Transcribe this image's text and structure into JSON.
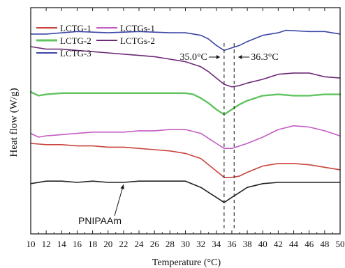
{
  "chart_data": {
    "type": "line",
    "xlabel": "Temperature (°C)",
    "ylabel": "Heat flow (W/g)",
    "xlim": [
      10,
      50
    ],
    "x_ticks": [
      10,
      12,
      14,
      16,
      18,
      20,
      22,
      24,
      26,
      28,
      30,
      32,
      34,
      36,
      38,
      40,
      42,
      44,
      46,
      48,
      50
    ],
    "y_ticks_shown": false,
    "grid": false,
    "legend_position": "top-left",
    "reference_lines": [
      {
        "x": 35.0,
        "label": "35.0°C",
        "style": "dashed"
      },
      {
        "x": 36.3,
        "label": "36.3°C",
        "style": "dashed"
      }
    ],
    "annotation": {
      "text": "PNIPAAm",
      "points_to_x": 22,
      "series": "PNIPAAm"
    },
    "series": [
      {
        "name": "LCTG-3",
        "color": "#3b45a8",
        "x": [
          10,
          12,
          16,
          20,
          24,
          28,
          30,
          32,
          33,
          34,
          35,
          36,
          37,
          38,
          40,
          42,
          43,
          46,
          48,
          50
        ],
        "y": [
          15.9,
          15.9,
          16.1,
          16.0,
          16.1,
          16.0,
          16.0,
          15.8,
          15.5,
          15.0,
          14.6,
          14.8,
          15.0,
          15.3,
          15.8,
          16.0,
          16.2,
          16.1,
          16.1,
          15.9
        ]
      },
      {
        "name": "LCTGs-2",
        "color": "#6d2a78",
        "x": [
          10,
          12,
          14,
          16,
          18,
          20,
          22,
          24,
          26,
          28,
          30,
          32,
          33,
          34,
          35,
          36,
          37,
          38,
          40,
          42,
          44,
          46,
          48,
          50
        ],
        "y": [
          14.9,
          14.7,
          14.7,
          14.6,
          14.5,
          14.4,
          14.3,
          14.2,
          14.1,
          13.9,
          13.7,
          13.3,
          12.9,
          12.4,
          11.9,
          11.7,
          11.8,
          12.0,
          12.3,
          12.7,
          12.8,
          12.8,
          12.5,
          12.4
        ]
      },
      {
        "name": "LCTG-2",
        "color": "#5fc35f",
        "x": [
          10,
          11,
          12,
          14,
          16,
          18,
          20,
          22,
          24,
          26,
          28,
          30,
          31,
          32,
          33,
          34,
          35,
          36,
          37,
          38,
          40,
          42,
          44,
          46,
          48,
          50
        ],
        "y": [
          11.3,
          11.0,
          11.1,
          11.2,
          11.2,
          11.2,
          11.2,
          11.2,
          11.2,
          11.2,
          11.2,
          11.2,
          11.1,
          10.8,
          10.4,
          9.9,
          9.5,
          9.9,
          10.3,
          10.6,
          11.0,
          11.1,
          11.0,
          11.0,
          11.1,
          11.1
        ]
      },
      {
        "name": "LCTGs-1",
        "color": "#c45cc4",
        "x": [
          10,
          11,
          12,
          14,
          16,
          18,
          20,
          22,
          24,
          26,
          28,
          30,
          32,
          33,
          34,
          35,
          36,
          37,
          38,
          40,
          42,
          44,
          46,
          48,
          50
        ],
        "y": [
          8.0,
          7.7,
          7.8,
          7.9,
          8.0,
          8.1,
          8.1,
          8.1,
          8.2,
          8.2,
          8.3,
          8.3,
          8.0,
          7.6,
          7.2,
          6.8,
          6.8,
          7.0,
          7.2,
          7.7,
          8.3,
          8.6,
          8.5,
          8.2,
          7.8
        ]
      },
      {
        "name": "LCTG-1",
        "color": "#c9443c",
        "x": [
          10,
          12,
          14,
          16,
          18,
          20,
          22,
          24,
          26,
          28,
          30,
          32,
          33,
          34,
          35,
          36,
          37,
          38,
          40,
          42,
          44,
          46,
          48,
          50
        ],
        "y": [
          7.2,
          7.1,
          7.1,
          7.0,
          7.0,
          6.9,
          6.9,
          6.8,
          6.7,
          6.6,
          6.4,
          6.0,
          5.5,
          5.0,
          4.5,
          4.5,
          4.6,
          4.9,
          5.4,
          5.6,
          5.6,
          5.5,
          5.3,
          5.1
        ]
      },
      {
        "name": "PNIPAAm",
        "color": "#222222",
        "x": [
          10,
          12,
          14,
          16,
          18,
          20,
          22,
          24,
          26,
          28,
          30,
          32,
          33,
          34,
          35,
          36,
          37,
          38,
          40,
          42,
          44,
          46,
          48,
          50
        ],
        "y": [
          4.0,
          4.2,
          4.2,
          4.1,
          4.2,
          4.1,
          4.1,
          4.2,
          4.2,
          4.2,
          4.2,
          3.7,
          3.3,
          2.9,
          2.5,
          2.9,
          3.3,
          3.7,
          4.0,
          4.1,
          4.1,
          4.1,
          4.1,
          4.1
        ]
      }
    ],
    "legend": {
      "rows": [
        [
          "LCTG-1",
          "LCTGs-1"
        ],
        [
          "LCTG-2",
          "LCTGs-2"
        ],
        [
          "LCTG-3"
        ]
      ]
    }
  }
}
